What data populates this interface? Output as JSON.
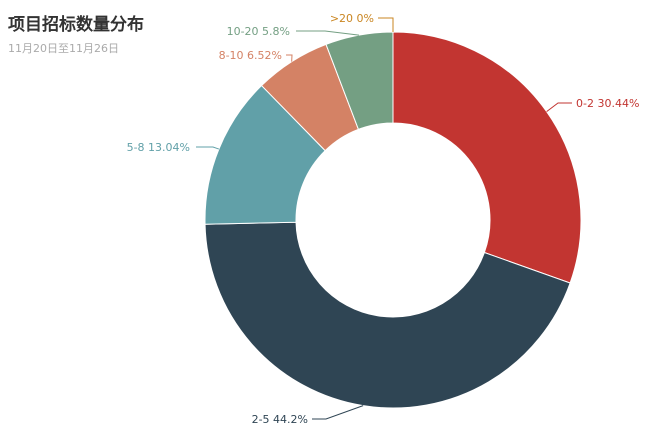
{
  "title": "项目招标数量分布",
  "subtitle": "11月20日至11月26日",
  "chart_data": {
    "type": "pie",
    "variant": "donut",
    "title": "项目招标数量分布",
    "subtitle": "11月20日至11月26日",
    "slices": [
      {
        "name": "0-2",
        "value": 30.44,
        "label": "0-2 30.44%",
        "color": "#c23531"
      },
      {
        "name": "2-5",
        "value": 44.2,
        "label": "2-5 44.2%",
        "color": "#2f4554"
      },
      {
        "name": "5-8",
        "value": 13.04,
        "label": "5-8 13.04%",
        "color": "#61a0a8"
      },
      {
        "name": "8-10",
        "value": 6.52,
        "label": "8-10 6.52%",
        "color": "#d48265"
      },
      {
        "name": "10-20",
        "value": 5.8,
        "label": "10-20 5.8%",
        "color": "#749f83"
      },
      {
        "name": ">20",
        "value": 0,
        "label": ">20 0%",
        "color": "#ca8622"
      }
    ],
    "legend": "none"
  }
}
